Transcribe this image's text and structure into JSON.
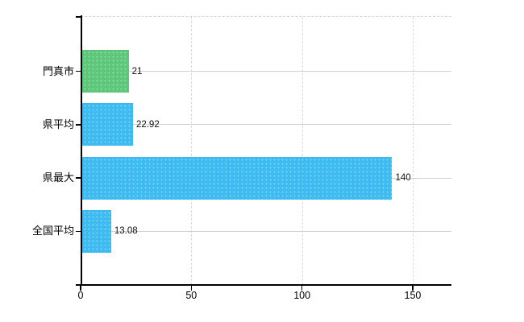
{
  "chart_data": {
    "type": "bar",
    "orientation": "horizontal",
    "title": "",
    "xlabel": "",
    "ylabel": "",
    "categories": [
      "門真市",
      "県平均",
      "県最大",
      "全国平均"
    ],
    "values": [
      21,
      22.92,
      140,
      13.08
    ],
    "data_labels": [
      "21",
      "22.92",
      "140",
      "13.08"
    ],
    "bar_colors": [
      "#5EC87A",
      "#3EBCF2",
      "#3EBCF2",
      "#3EBCF2"
    ],
    "highlighted_category": "門真市",
    "x_ticks": [
      0,
      50,
      100,
      150
    ],
    "x_tick_labels": [
      "0",
      "50",
      "100",
      "150"
    ],
    "xlim": [
      0,
      167.5
    ],
    "grid": {
      "vertical_style": "dashed",
      "horizontal_style": "solid"
    },
    "legend": "none"
  },
  "colors": {
    "background": "#ffffff",
    "axis": "#000000",
    "grid_vertical": "#d9d9d9",
    "grid_horizontal": "#ccd3cb",
    "plot_top_border": "#d6d6d6",
    "text": "#000000",
    "highlight_bar": "#5EC87A",
    "default_bar": "#3EBCF2"
  }
}
